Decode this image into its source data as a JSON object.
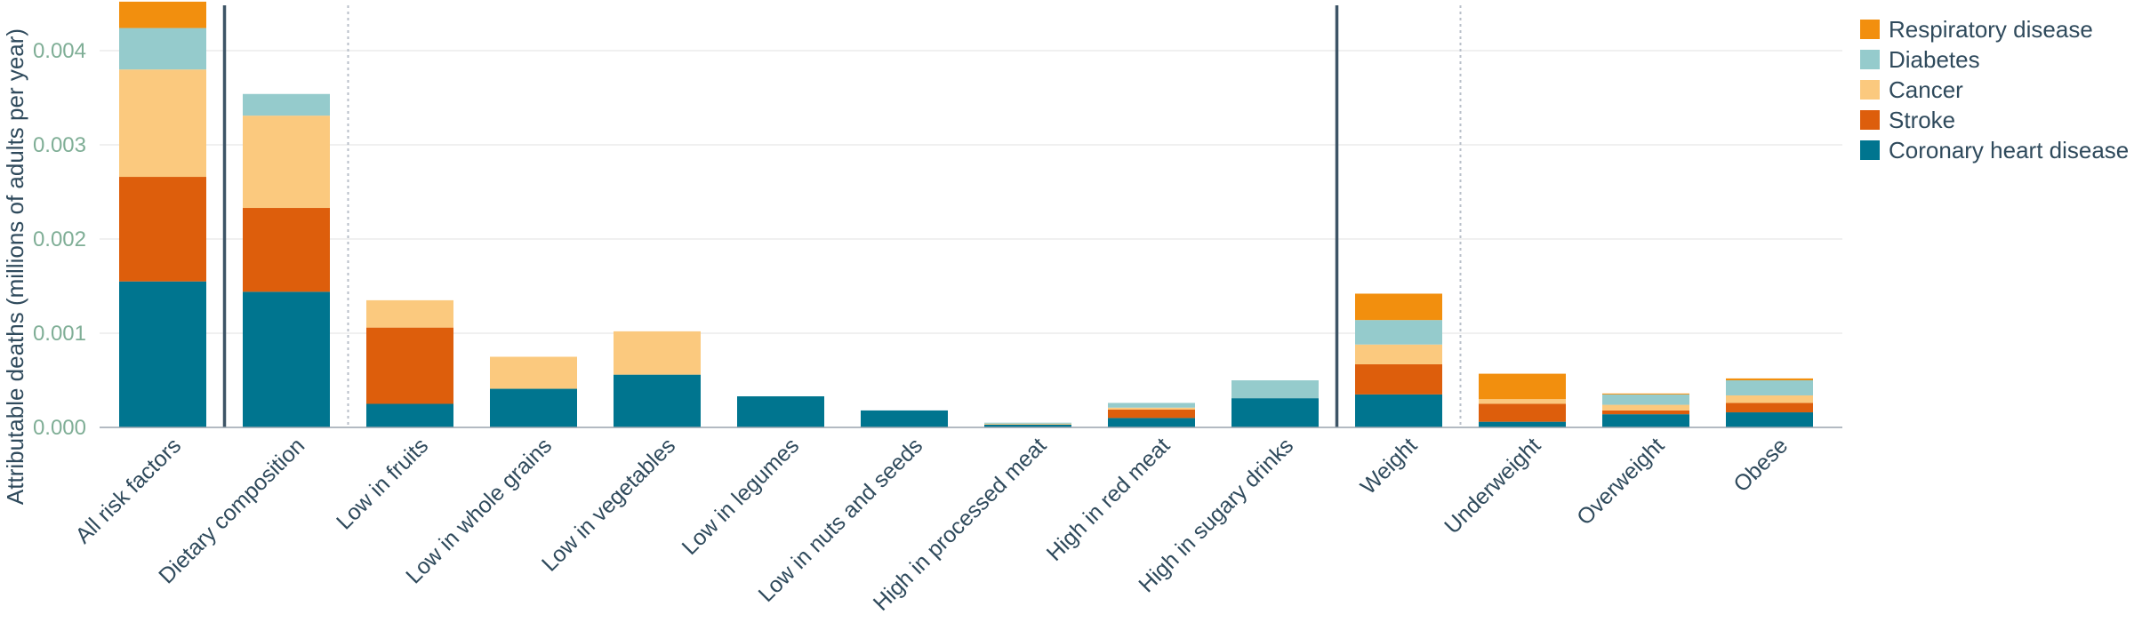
{
  "chart_data": {
    "type": "bar",
    "stacked": true,
    "title": "",
    "xlabel": "",
    "ylabel": "Attributable deaths (millions of adults per year)",
    "ylim": [
      0,
      0.0045
    ],
    "yticks": [
      "0.000",
      "0.001",
      "0.002",
      "0.003",
      "0.004"
    ],
    "ytick_values": [
      0,
      0.001,
      0.002,
      0.003,
      0.004
    ],
    "grid": true,
    "legend_position": "top-right",
    "categories": [
      "All risk factors",
      "Dietary composition",
      "Low in fruits",
      "Low in whole grains",
      "Low in vegetables",
      "Low in legumes",
      "Low in nuts and seeds",
      "High in processed meat",
      "High in red meat",
      "High in sugary drinks",
      "Weight",
      "Underweight",
      "Overweight",
      "Obese"
    ],
    "separators": [
      {
        "after_index": 0,
        "style": "solid"
      },
      {
        "after_index": 1,
        "style": "dotted"
      },
      {
        "after_index": 9,
        "style": "solid"
      },
      {
        "after_index": 10,
        "style": "dotted"
      }
    ],
    "series": [
      {
        "name": "Coronary heart disease",
        "color": "#00758f",
        "values": [
          0.00155,
          0.00144,
          0.00025,
          0.00041,
          0.00056,
          0.00033,
          0.00018,
          3e-05,
          0.0001,
          0.00031,
          0.00035,
          6e-05,
          0.00014,
          0.00016
        ]
      },
      {
        "name": "Stroke",
        "color": "#dd5e0c",
        "values": [
          0.00111,
          0.00089,
          0.00081,
          0,
          0,
          0,
          0,
          0,
          9e-05,
          0,
          0.00032,
          0.00019,
          4e-05,
          0.0001
        ]
      },
      {
        "name": "Cancer",
        "color": "#fbc97e",
        "values": [
          0.00114,
          0.00098,
          0.00029,
          0.00034,
          0.00046,
          0,
          0,
          1e-05,
          2e-05,
          0,
          0.00021,
          5e-05,
          6e-05,
          8e-05
        ]
      },
      {
        "name": "Diabetes",
        "color": "#95cbcc",
        "values": [
          0.00044,
          0.00023,
          0,
          0,
          0,
          0,
          0,
          1e-05,
          5e-05,
          0.00019,
          0.00026,
          0,
          0.00011,
          0.00016
        ]
      },
      {
        "name": "Respiratory disease",
        "color": "#f28f0e",
        "values": [
          0.00028,
          0,
          0,
          0,
          0,
          0,
          0,
          0,
          0,
          0,
          0.00028,
          0.00027,
          1e-05,
          2e-05
        ]
      }
    ],
    "legend_order": [
      "Respiratory disease",
      "Diabetes",
      "Cancer",
      "Stroke",
      "Coronary heart disease"
    ]
  }
}
